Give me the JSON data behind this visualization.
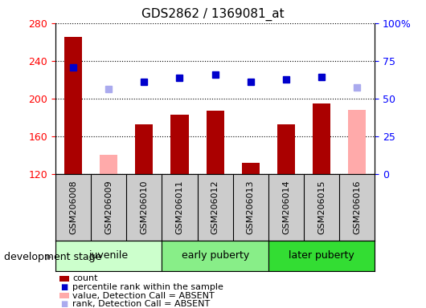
{
  "title": "GDS2862 / 1369081_at",
  "samples": [
    "GSM206008",
    "GSM206009",
    "GSM206010",
    "GSM206011",
    "GSM206012",
    "GSM206013",
    "GSM206014",
    "GSM206015",
    "GSM206016"
  ],
  "count_values": [
    265,
    null,
    173,
    183,
    187,
    132,
    173,
    195,
    null
  ],
  "count_absent": [
    null,
    140,
    null,
    null,
    null,
    null,
    null,
    null,
    188
  ],
  "percentile_present": [
    233,
    null,
    218,
    222,
    225,
    218,
    220,
    223,
    null
  ],
  "percentile_absent": [
    null,
    210,
    null,
    null,
    null,
    null,
    null,
    null,
    212
  ],
  "ylim_left": [
    120,
    280
  ],
  "ylim_right": [
    0,
    100
  ],
  "yticks_left": [
    120,
    160,
    200,
    240,
    280
  ],
  "yticks_right": [
    0,
    25,
    50,
    75,
    100
  ],
  "yticklabels_right": [
    "0",
    "25",
    "50",
    "75",
    "100%"
  ],
  "groups": [
    {
      "label": "juvenile",
      "start": 0,
      "end": 3,
      "color": "#ccffcc"
    },
    {
      "label": "early puberty",
      "start": 3,
      "end": 6,
      "color": "#88ee88"
    },
    {
      "label": "later puberty",
      "start": 6,
      "end": 9,
      "color": "#33dd33"
    }
  ],
  "bar_color_present": "#aa0000",
  "bar_color_absent": "#ffaaaa",
  "dot_color_present": "#0000cc",
  "dot_color_absent": "#aaaaee",
  "plot_bg": "#ffffff",
  "xtick_bg": "#cccccc",
  "group_border": "#000000",
  "bar_width": 0.5,
  "dot_size": 6,
  "legend_items": [
    {
      "color": "#aa0000",
      "type": "rect",
      "label": "count"
    },
    {
      "color": "#0000cc",
      "type": "square",
      "label": "percentile rank within the sample"
    },
    {
      "color": "#ffaaaa",
      "type": "rect",
      "label": "value, Detection Call = ABSENT"
    },
    {
      "color": "#aaaaee",
      "type": "square",
      "label": "rank, Detection Call = ABSENT"
    }
  ]
}
